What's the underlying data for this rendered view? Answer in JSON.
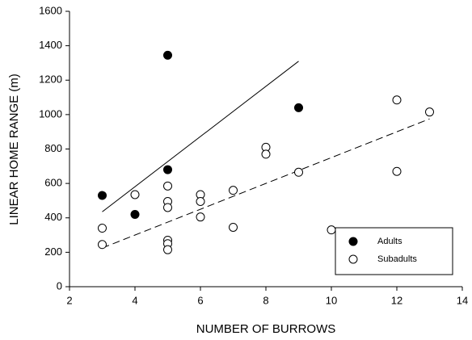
{
  "chart_data": {
    "type": "scatter",
    "xlabel": "NUMBER OF BURROWS",
    "ylabel": "LINEAR HOME RANGE (m)",
    "xlim": [
      2,
      14
    ],
    "xticks": [
      2,
      4,
      6,
      8,
      10,
      12,
      14
    ],
    "ylim": [
      0,
      1600
    ],
    "yticks": [
      0,
      200,
      400,
      600,
      800,
      1000,
      1200,
      1400,
      1600
    ],
    "legend": "lower right",
    "series": [
      {
        "name": "Adults",
        "color": "#000000",
        "fill": "#000000",
        "x": [
          3,
          4,
          5,
          5,
          9
        ],
        "values": [
          530,
          420,
          1345,
          680,
          1040
        ],
        "fit": {
          "dash": "none",
          "x": [
            3,
            9
          ],
          "values": [
            435,
            1310
          ]
        }
      },
      {
        "name": "Subadults",
        "color": "#000000",
        "fill": "#ffffff",
        "x": [
          3,
          3,
          4,
          5,
          5,
          5,
          5,
          5,
          5,
          6,
          6,
          6,
          7,
          7,
          8,
          8,
          9,
          10,
          12,
          12,
          13
        ],
        "values": [
          340,
          245,
          535,
          585,
          495,
          460,
          270,
          250,
          215,
          535,
          495,
          405,
          560,
          345,
          810,
          770,
          665,
          330,
          1085,
          670,
          1015
        ],
        "fit": {
          "dash": "9 5",
          "x": [
            3,
            13
          ],
          "values": [
            225,
            975
          ]
        }
      }
    ]
  }
}
